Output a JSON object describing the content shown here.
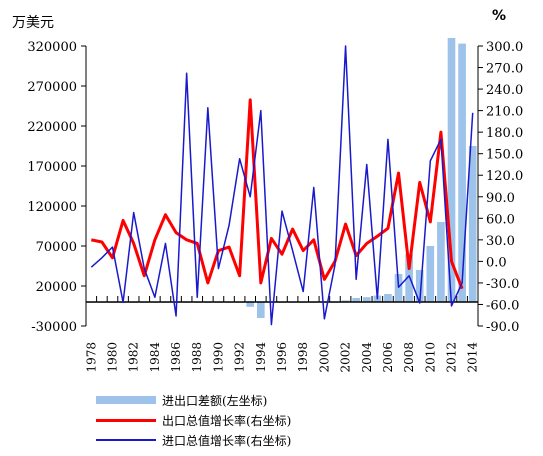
{
  "chart_data": {
    "type": "bar+line",
    "title": "",
    "left_axis": {
      "unit": "万美元",
      "min": -30000,
      "max": 320000,
      "ticks": [
        -30000,
        20000,
        70000,
        120000,
        170000,
        220000,
        270000,
        320000
      ],
      "tick_labels": [
        "-30000",
        "20000",
        "70000",
        "120000",
        "170000",
        "220000",
        "270000",
        "320000"
      ]
    },
    "right_axis": {
      "unit": "%",
      "min": -90,
      "max": 300,
      "ticks": [
        -90,
        -60,
        -30,
        0,
        30,
        60,
        90,
        120,
        150,
        180,
        210,
        240,
        270,
        300
      ],
      "tick_labels": [
        "-90.0",
        "-60.0",
        "-30.0",
        "0.0",
        "30.0",
        "60.0",
        "90.0",
        "120.0",
        "150.0",
        "180.0",
        "210.0",
        "240.0",
        "270.0",
        "300.0"
      ]
    },
    "x": [
      1978,
      1979,
      1980,
      1981,
      1982,
      1983,
      1984,
      1985,
      1986,
      1987,
      1988,
      1989,
      1990,
      1991,
      1992,
      1993,
      1994,
      1995,
      1996,
      1997,
      1998,
      1999,
      2000,
      2001,
      2002,
      2003,
      2004,
      2005,
      2006,
      2007,
      2008,
      2009,
      2010,
      2011,
      2012,
      2013,
      2014
    ],
    "x_tick_labels": [
      "1978",
      "1980",
      "1982",
      "1984",
      "1986",
      "1988",
      "1990",
      "1992",
      "1994",
      "1996",
      "1998",
      "2000",
      "2002",
      "2004",
      "2006",
      "2008",
      "2010",
      "2012",
      "2014"
    ],
    "series": [
      {
        "name": "进出口差额(左坐标)",
        "type": "bar",
        "axis": "left",
        "color": "#9dc3ea",
        "values": [
          -1000,
          -1000,
          -1000,
          -1000,
          -1000,
          -1000,
          -1000,
          -1000,
          -1000,
          -1000,
          -1000,
          -1000,
          -1000,
          -1000,
          -1000,
          -6000,
          -20000,
          -1000,
          -1000,
          -1000,
          -1000,
          -1000,
          -1000,
          -1000,
          2000,
          5000,
          6000,
          8000,
          10000,
          35000,
          60000,
          40000,
          70000,
          100000,
          330000,
          323000,
          195000
        ]
      },
      {
        "name": "出口总值增长率(右坐标)",
        "type": "line",
        "axis": "right",
        "color": "#ff0000",
        "values": [
          30,
          27,
          5,
          57,
          25,
          -20,
          30,
          65,
          40,
          30,
          25,
          -30,
          15,
          20,
          -20,
          225,
          -30,
          32,
          10,
          45,
          15,
          30,
          -25,
          0,
          52,
          8,
          25,
          35,
          46,
          123,
          -10,
          110,
          55,
          180,
          0,
          -38,
          null
        ]
      },
      {
        "name": "进口总值增长率(右坐标)",
        "type": "line",
        "axis": "right",
        "color": "#1a1acc",
        "values": [
          -8,
          5,
          20,
          -57,
          68,
          -10,
          -50,
          25,
          -76,
          262,
          -50,
          214,
          -10,
          50,
          143,
          90,
          210,
          -88,
          70,
          15,
          -42,
          103,
          -80,
          -5,
          300,
          -25,
          135,
          -52,
          170,
          -36,
          -20,
          -58,
          140,
          170,
          -62,
          -30,
          207
        ]
      }
    ]
  }
}
